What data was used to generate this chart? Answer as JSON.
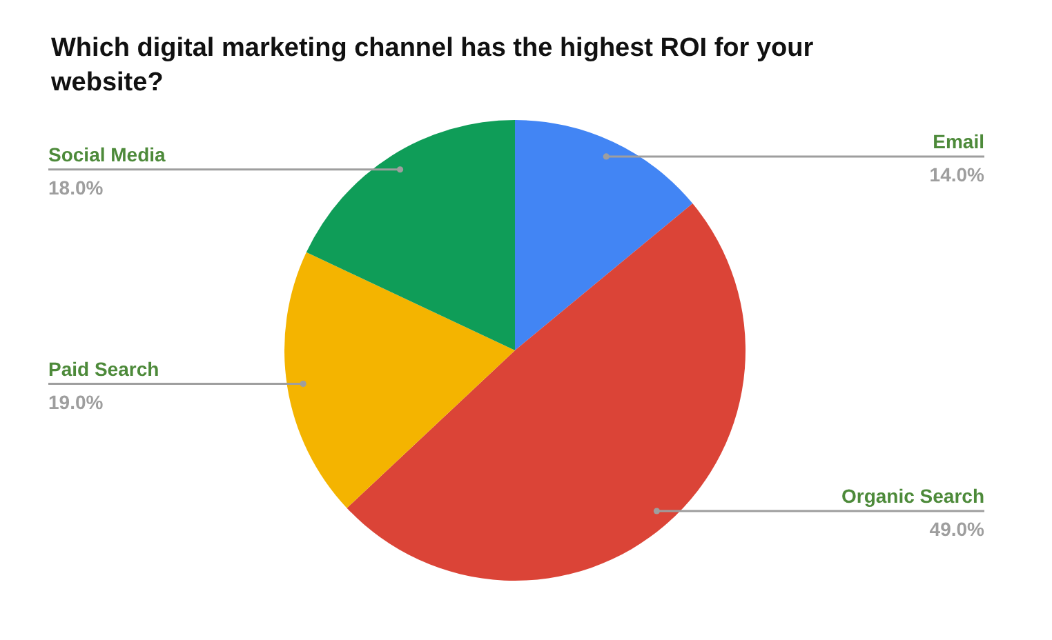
{
  "chart_data": {
    "type": "pie",
    "title": "Which digital marketing channel has the highest ROI for your website?",
    "categories": [
      "Email",
      "Organic Search",
      "Paid Search",
      "Social Media"
    ],
    "values": [
      14,
      49,
      19,
      18
    ],
    "colors": [
      "#4285f4",
      "#db4437",
      "#f4b400",
      "#0f9d58"
    ],
    "value_labels": [
      "14.0%",
      "49.0%",
      "19.0%",
      "18.0%"
    ]
  }
}
